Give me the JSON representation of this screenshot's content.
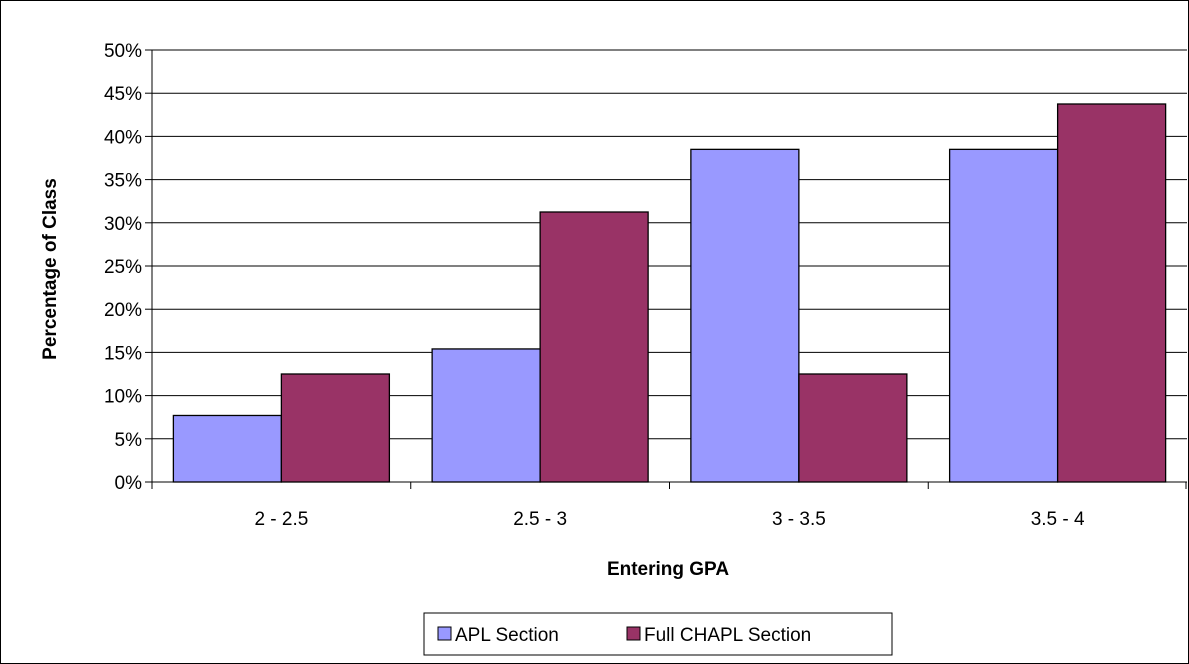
{
  "chart_data": {
    "type": "bar",
    "title": "",
    "xlabel": "Entering GPA",
    "ylabel": "Percentage of Class",
    "categories": [
      "2 - 2.5",
      "2.5 - 3",
      "3 - 3.5",
      "3.5 - 4"
    ],
    "series": [
      {
        "name": "APL Section",
        "values": [
          7.7,
          15.4,
          38.5,
          38.5
        ],
        "color": "#9999ff"
      },
      {
        "name": "Full CHAPL Section",
        "values": [
          12.5,
          31.25,
          12.5,
          43.75
        ],
        "color": "#993366"
      }
    ],
    "ylim": [
      0,
      50
    ],
    "y_ticks": [
      0,
      5,
      10,
      15,
      20,
      25,
      30,
      35,
      40,
      45,
      50
    ],
    "y_tick_labels": [
      "0%",
      "5%",
      "10%",
      "15%",
      "20%",
      "25%",
      "30%",
      "35%",
      "40%",
      "45%",
      "50%"
    ],
    "grid": "horizontal major gridlines",
    "legend_position": "bottom"
  }
}
